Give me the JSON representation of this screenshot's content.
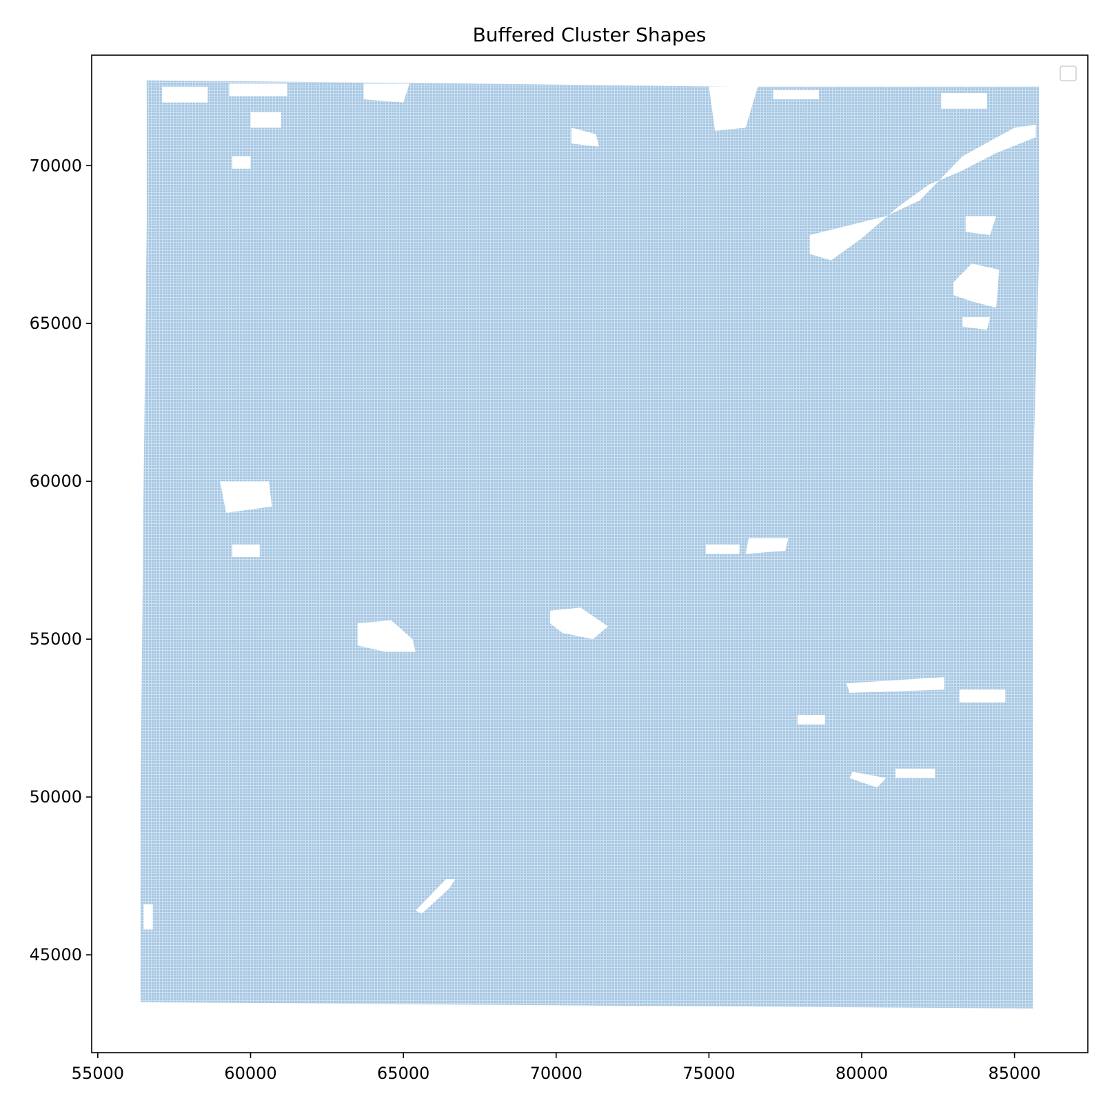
{
  "chart_data": {
    "type": "map",
    "title": "Buffered Cluster Shapes",
    "xlabel": "",
    "ylabel": "",
    "xlim": [
      54800,
      87400
    ],
    "ylim": [
      41900,
      73500
    ],
    "xticks": [
      55000,
      60000,
      65000,
      70000,
      75000,
      80000,
      85000
    ],
    "yticks": [
      45000,
      50000,
      55000,
      60000,
      65000,
      70000
    ],
    "grid": false,
    "legend": {
      "placement": "upper-right",
      "entries": []
    },
    "fill_color": "#a6c8e4",
    "region": {
      "outline": [
        [
          56600,
          72700
        ],
        [
          67200,
          72600
        ],
        [
          75800,
          72500
        ],
        [
          85800,
          72500
        ],
        [
          85800,
          67000
        ],
        [
          85600,
          60000
        ],
        [
          85600,
          52000
        ],
        [
          85600,
          43300
        ],
        [
          70000,
          43400
        ],
        [
          56400,
          43500
        ],
        [
          56400,
          50000
        ],
        [
          56500,
          60000
        ],
        [
          56600,
          68000
        ]
      ],
      "holes": [
        {
          "name": "top-left-gap-1",
          "points": [
            [
              57100,
              72500
            ],
            [
              58600,
              72500
            ],
            [
              58600,
              72000
            ],
            [
              57100,
              72000
            ]
          ]
        },
        {
          "name": "top-left-gap-2",
          "points": [
            [
              59300,
              72600
            ],
            [
              61200,
              72600
            ],
            [
              61200,
              72200
            ],
            [
              59300,
              72200
            ]
          ]
        },
        {
          "name": "top-gap-3",
          "points": [
            [
              63700,
              72600
            ],
            [
              65200,
              72600
            ],
            [
              65000,
              72000
            ],
            [
              63700,
              72100
            ]
          ]
        },
        {
          "name": "top-gap-4",
          "points": [
            [
              60000,
              71700
            ],
            [
              61000,
              71700
            ],
            [
              61000,
              71200
            ],
            [
              60000,
              71200
            ]
          ]
        },
        {
          "name": "top-gap-5",
          "points": [
            [
              75000,
              72500
            ],
            [
              76600,
              72500
            ],
            [
              76200,
              71200
            ],
            [
              75200,
              71100
            ]
          ]
        },
        {
          "name": "top-gap-6",
          "points": [
            [
              77100,
              72400
            ],
            [
              78600,
              72400
            ],
            [
              78600,
              72100
            ],
            [
              77100,
              72100
            ]
          ]
        },
        {
          "name": "top-gap-7",
          "points": [
            [
              82600,
              72300
            ],
            [
              84100,
              72300
            ],
            [
              84100,
              71800
            ],
            [
              82600,
              71800
            ]
          ]
        },
        {
          "name": "top-gap-8",
          "points": [
            [
              70500,
              71200
            ],
            [
              71300,
              71000
            ],
            [
              71400,
              70600
            ],
            [
              70500,
              70700
            ]
          ]
        },
        {
          "name": "top-gap-9",
          "points": [
            [
              59400,
              70300
            ],
            [
              60000,
              70300
            ],
            [
              60000,
              69900
            ],
            [
              59400,
              69900
            ]
          ]
        },
        {
          "name": "diagonal-channel",
          "points": [
            [
              78300,
              67800
            ],
            [
              80800,
              68400
            ],
            [
              81900,
              68900
            ],
            [
              83300,
              70300
            ],
            [
              85000,
              71200
            ],
            [
              85700,
              71300
            ],
            [
              85700,
              70900
            ],
            [
              84400,
              70400
            ],
            [
              83200,
              69800
            ],
            [
              82200,
              69400
            ],
            [
              81200,
              68700
            ],
            [
              80000,
              67700
            ],
            [
              79000,
              67000
            ],
            [
              78300,
              67200
            ]
          ]
        },
        {
          "name": "right-lake-1",
          "points": [
            [
              83000,
              66300
            ],
            [
              83600,
              66900
            ],
            [
              84500,
              66700
            ],
            [
              84400,
              65500
            ],
            [
              83600,
              65700
            ],
            [
              83000,
              65900
            ]
          ]
        },
        {
          "name": "right-lake-2",
          "points": [
            [
              83300,
              65200
            ],
            [
              84200,
              65200
            ],
            [
              84100,
              64800
            ],
            [
              83300,
              64900
            ]
          ]
        },
        {
          "name": "right-lake-3",
          "points": [
            [
              83400,
              68400
            ],
            [
              84400,
              68400
            ],
            [
              84200,
              67800
            ],
            [
              83400,
              67900
            ]
          ]
        },
        {
          "name": "left-cluster-1",
          "points": [
            [
              59000,
              60000
            ],
            [
              60600,
              60000
            ],
            [
              60700,
              59200
            ],
            [
              59200,
              59000
            ]
          ]
        },
        {
          "name": "left-cluster-2",
          "points": [
            [
              59400,
              58000
            ],
            [
              60300,
              58000
            ],
            [
              60300,
              57600
            ],
            [
              59400,
              57600
            ]
          ]
        },
        {
          "name": "center-pond",
          "points": [
            [
              63500,
              55500
            ],
            [
              64600,
              55600
            ],
            [
              65300,
              55000
            ],
            [
              65400,
              54600
            ],
            [
              64400,
              54600
            ],
            [
              63500,
              54800
            ]
          ]
        },
        {
          "name": "center-blob",
          "points": [
            [
              69800,
              55900
            ],
            [
              70800,
              56000
            ],
            [
              71700,
              55400
            ],
            [
              71200,
              55000
            ],
            [
              70200,
              55200
            ],
            [
              69800,
              55500
            ]
          ]
        },
        {
          "name": "center-scatter-1",
          "points": [
            [
              76300,
              58200
            ],
            [
              77600,
              58200
            ],
            [
              77500,
              57800
            ],
            [
              76200,
              57700
            ]
          ]
        },
        {
          "name": "center-scatter-2",
          "points": [
            [
              74900,
              58000
            ],
            [
              76000,
              58000
            ],
            [
              76000,
              57700
            ],
            [
              74900,
              57700
            ]
          ]
        },
        {
          "name": "south-diagonal-cut",
          "points": [
            [
              65400,
              46400
            ],
            [
              66400,
              47400
            ],
            [
              66700,
              47400
            ],
            [
              66500,
              47100
            ],
            [
              65600,
              46300
            ]
          ]
        },
        {
          "name": "southeast-1",
          "points": [
            [
              79500,
              53600
            ],
            [
              82700,
              53800
            ],
            [
              82700,
              53400
            ],
            [
              79600,
              53300
            ]
          ]
        },
        {
          "name": "southeast-2",
          "points": [
            [
              83200,
              53400
            ],
            [
              84700,
              53400
            ],
            [
              84700,
              53000
            ],
            [
              83200,
              53000
            ]
          ]
        },
        {
          "name": "southeast-3",
          "points": [
            [
              81100,
              50900
            ],
            [
              82400,
              50900
            ],
            [
              82400,
              50600
            ],
            [
              81100,
              50600
            ]
          ]
        },
        {
          "name": "southeast-4",
          "points": [
            [
              79700,
              50800
            ],
            [
              80800,
              50600
            ],
            [
              80500,
              50300
            ],
            [
              79600,
              50600
            ]
          ]
        },
        {
          "name": "southeast-5",
          "points": [
            [
              77900,
              52600
            ],
            [
              78800,
              52600
            ],
            [
              78800,
              52300
            ],
            [
              77900,
              52300
            ]
          ]
        },
        {
          "name": "left-strip-1",
          "points": [
            [
              56500,
              46600
            ],
            [
              56800,
              46600
            ],
            [
              56800,
              45800
            ],
            [
              56500,
              45800
            ]
          ]
        }
      ]
    }
  }
}
